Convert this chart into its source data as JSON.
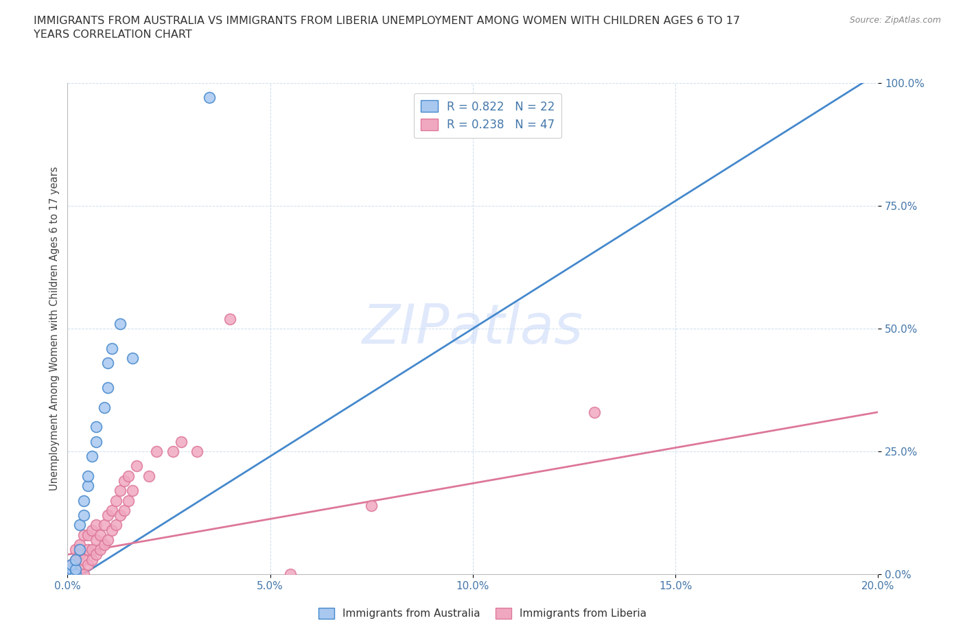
{
  "title": "IMMIGRANTS FROM AUSTRALIA VS IMMIGRANTS FROM LIBERIA UNEMPLOYMENT AMONG WOMEN WITH CHILDREN AGES 6 TO 17\nYEARS CORRELATION CHART",
  "source": "Source: ZipAtlas.com",
  "ylabel": "Unemployment Among Women with Children Ages 6 to 17 years",
  "xlabel": "",
  "xlim": [
    0.0,
    0.2
  ],
  "ylim": [
    0.0,
    1.0
  ],
  "xticks": [
    0.0,
    0.05,
    0.1,
    0.15,
    0.2
  ],
  "xtick_labels": [
    "0.0%",
    "5.0%",
    "10.0%",
    "15.0%",
    "20.0%"
  ],
  "yticks": [
    0.0,
    0.25,
    0.5,
    0.75,
    1.0
  ],
  "ytick_labels": [
    "0.0%",
    "25.0%",
    "50.0%",
    "75.0%",
    "100.0%"
  ],
  "australia_R": 0.822,
  "australia_N": 22,
  "liberia_R": 0.238,
  "liberia_N": 47,
  "australia_color": "#a8c8f0",
  "liberia_color": "#f0a8c0",
  "australia_line_color": "#4488cc",
  "liberia_line_color": "#dd7799",
  "watermark": "ZIPatlas",
  "watermark_color": "#c8d8f8",
  "aus_scatter_x": [
    0.001,
    0.001,
    0.001,
    0.002,
    0.002,
    0.002,
    0.003,
    0.003,
    0.004,
    0.004,
    0.005,
    0.005,
    0.006,
    0.007,
    0.007,
    0.009,
    0.01,
    0.01,
    0.011,
    0.013,
    0.016,
    0.035
  ],
  "aus_scatter_y": [
    0.0,
    0.01,
    0.02,
    0.0,
    0.01,
    0.03,
    0.05,
    0.1,
    0.12,
    0.15,
    0.18,
    0.2,
    0.24,
    0.27,
    0.3,
    0.34,
    0.38,
    0.43,
    0.46,
    0.51,
    0.44,
    0.97
  ],
  "lib_scatter_x": [
    0.001,
    0.001,
    0.002,
    0.002,
    0.002,
    0.003,
    0.003,
    0.003,
    0.004,
    0.004,
    0.004,
    0.005,
    0.005,
    0.005,
    0.006,
    0.006,
    0.006,
    0.007,
    0.007,
    0.007,
    0.008,
    0.008,
    0.009,
    0.009,
    0.01,
    0.01,
    0.011,
    0.011,
    0.012,
    0.012,
    0.013,
    0.013,
    0.014,
    0.014,
    0.015,
    0.015,
    0.016,
    0.017,
    0.02,
    0.022,
    0.026,
    0.028,
    0.032,
    0.04,
    0.055,
    0.075,
    0.13
  ],
  "lib_scatter_y": [
    0.0,
    0.02,
    0.0,
    0.03,
    0.05,
    0.01,
    0.04,
    0.06,
    0.0,
    0.03,
    0.08,
    0.02,
    0.05,
    0.08,
    0.03,
    0.05,
    0.09,
    0.04,
    0.07,
    0.1,
    0.05,
    0.08,
    0.06,
    0.1,
    0.07,
    0.12,
    0.09,
    0.13,
    0.1,
    0.15,
    0.12,
    0.17,
    0.13,
    0.19,
    0.15,
    0.2,
    0.17,
    0.22,
    0.2,
    0.25,
    0.25,
    0.27,
    0.25,
    0.52,
    0.0,
    0.14,
    0.33
  ],
  "aus_line_x0": 0.0,
  "aus_line_y0": -0.02,
  "aus_line_x1": 0.2,
  "aus_line_y1": 1.02,
  "lib_line_x0": 0.0,
  "lib_line_y0": 0.04,
  "lib_line_x1": 0.2,
  "lib_line_y1": 0.33
}
